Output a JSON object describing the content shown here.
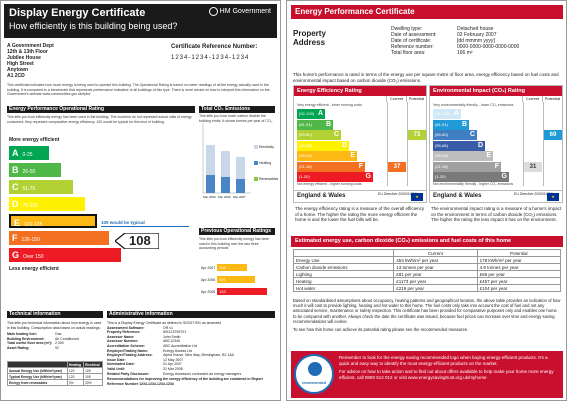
{
  "dec": {
    "title": "Display Energy Certificate",
    "subtitle": "How efficiently is this building being used?",
    "logo": "HM Government",
    "address": [
      "A Government Dept",
      "12th & 13th Floor",
      "Jubilee House",
      "High Street",
      "Anytown",
      "A1 2CD"
    ],
    "ref_label": "Certificate Reference Number:",
    "ref_value": "1234-1234-1234-1234",
    "intro": "This certificate indicates how much energy is being used to operate this building. The Operational Rating is based on meter readings of all the energy actually used in the building. It is compared to a benchmark that represents performance indicative of all buildings of this type. There is more advice on how to interpret this information on the Government's website www.communities.gov.uk/epbd",
    "op_rating_head": "Energy Performance Operational Rating",
    "op_rating_text": "This tells you how efficiently energy has been used in the building. The numbers do not represent actual units of energy consumed; they represent comparative energy efficiency. 100 would be typical for this kind of building.",
    "more_label": "More energy efficient",
    "less_label": "Less energy efficient",
    "bands": [
      {
        "letter": "A",
        "range": "0-25",
        "color": "#00a651"
      },
      {
        "letter": "B",
        "range": "26-50",
        "color": "#50b848"
      },
      {
        "letter": "C",
        "range": "51-75",
        "color": "#b2d234"
      },
      {
        "letter": "D",
        "range": "76-100",
        "color": "#fff200"
      },
      {
        "letter": "E",
        "range": "101-125",
        "color": "#fdb913"
      },
      {
        "letter": "F",
        "range": "126-150",
        "color": "#f37021"
      },
      {
        "letter": "G",
        "range": "Over 150",
        "color": "#ed1c24"
      }
    ],
    "typical_label": "100 would be typical",
    "rating_value": "108",
    "co2_head": "Total CO₂ Emissions",
    "co2_text": "This tells you how much carbon dioxide the building emits. It shows tonnes per year of CO₂.",
    "co2_chart": {
      "legend": [
        "Electricity",
        "Heating",
        "Renewables"
      ],
      "x": [
        "Mar 2005",
        "Mar 2006",
        "Mar 2007"
      ],
      "electricity_color": "#c8d8ea",
      "heating_color": "#4a86c5",
      "renewable_color": "#8cc63f"
    },
    "prev_head": "Previous Operational Ratings",
    "prev_text": "This tells you how efficiently energy has been used in this building over the last three accounting periods",
    "prev_ratings": [
      {
        "period": "Apr 2007",
        "value": "108",
        "color": "#fdb913"
      },
      {
        "period": "Apr 2006",
        "value": "119",
        "color": "#fdb913"
      },
      {
        "period": "Apr 2005",
        "value": "153",
        "color": "#ed1c24"
      }
    ],
    "tech_head": "Technical information",
    "tech_text": "This tells you technical information about how energy is used in this building. Consumption data based on actual readings.",
    "tech_fields": [
      {
        "k": "Main heating fuel:",
        "v": "Gas"
      },
      {
        "k": "Building Environment:",
        "v": "Air Conditioned"
      },
      {
        "k": "Total useful floor area (m²):",
        "v": "2,300"
      },
      {
        "k": "Asset Rating:",
        "v": "92"
      }
    ],
    "tech_table": {
      "headers": [
        "",
        "Heating",
        "Electrical"
      ],
      "rows": [
        [
          "Annual Energy Use (kWh/m²/year)",
          "120",
          "125"
        ],
        [
          "Typical Energy Use (kWh/m²/year)",
          "120",
          "105"
        ],
        [
          "Energy from renewables",
          "0%",
          "20%"
        ]
      ]
    },
    "admin_head": "Administrative information",
    "admin_intro": "This is a Display Energy Certificate as defined in SI2007:991 as amended",
    "admin_fields": [
      {
        "k": "Assessment Software:",
        "v": "OR v1"
      },
      {
        "k": "Property Reference:",
        "v": "891123799701"
      },
      {
        "k": "Assessor Name:",
        "v": "John Smith"
      },
      {
        "k": "Assessor Number:",
        "v": "ABC12345"
      },
      {
        "k": "Accreditation Scheme:",
        "v": "ABC Accreditation Ltd"
      },
      {
        "k": "Employer/Trading Name:",
        "v": "Energy Assess Ltd"
      },
      {
        "k": "Employer/Trading Address:",
        "v": "Alpha House, New Way, Birmingham, B2 1AA"
      },
      {
        "k": "Issue Date:",
        "v": "12 May 2007"
      },
      {
        "k": "Nominated Date:",
        "v": "01 Apr 2007"
      },
      {
        "k": "Valid Until:",
        "v": "31 Mar 2008"
      },
      {
        "k": "Related Party Disclosure:",
        "v": "Energy Assessors contracted as energy managers"
      }
    ],
    "admin_footer": "Recommendations for improving the energy efficiency of the building are contained in Report Reference Number 1234-1234-1234-1234"
  },
  "epc": {
    "title": "Energy Performance Certificate",
    "property_address": "Property Address",
    "fields": [
      {
        "k": "Dwelling type:",
        "v": "Detached house"
      },
      {
        "k": "Date of assessment:",
        "v": "02 February 2007"
      },
      {
        "k": "Date of certificate:",
        "v": "[dd mmmm yyyy]"
      },
      {
        "k": "Reference number:",
        "v": "0000-0000-0000-0000-0000"
      },
      {
        "k": "Total floor area:",
        "v": "166 m²"
      }
    ],
    "intro": "This home's performance is rated in terms of the energy use per square metre of floor area, energy efficiency based on fuel costs and environmental impact based on carbon dioxide (CO₂) emissions.",
    "col_current": "Current",
    "col_potential": "Potential",
    "ee": {
      "title": "Energy Efficiency Rating",
      "top_note": "Very energy efficient - lower running costs",
      "bottom_note": "Not energy efficient - higher running costs",
      "current": "37",
      "potential": "73",
      "current_color": "#f37021",
      "potential_color": "#b2d234",
      "desc": "The energy efficiency rating is a measure of the overall efficiency of a home. The higher the rating the more energy efficient the home is and the lower the fuel bills will be."
    },
    "ei": {
      "title": "Environmental Impact (CO₂) Rating",
      "top_note": "Very environmentally friendly - lower CO₂ emissions",
      "bottom_note": "Not environmentally friendly - higher CO₂ emissions",
      "current": "31",
      "potential": "69",
      "current_color": "#dcdcdc",
      "potential_color": "#1f9ad6",
      "desc": "The environmental impact rating is a measure of a home's impact on the environment in terms of carbon dioxide (CO₂) emissions. The higher the rating the less impact it has on the environment."
    },
    "ee_bands": [
      {
        "letter": "A",
        "range": "(92-100)",
        "color": "#00a651"
      },
      {
        "letter": "B",
        "range": "(81-91)",
        "color": "#50b848"
      },
      {
        "letter": "C",
        "range": "(69-80)",
        "color": "#b2d234"
      },
      {
        "letter": "D",
        "range": "(55-68)",
        "color": "#fff200"
      },
      {
        "letter": "E",
        "range": "(39-54)",
        "color": "#fdb913"
      },
      {
        "letter": "F",
        "range": "(21-38)",
        "color": "#f37021"
      },
      {
        "letter": "G",
        "range": "(1-20)",
        "color": "#ed1c24"
      }
    ],
    "ei_bands": [
      {
        "letter": "A",
        "range": "(92-100)",
        "color": "#cfe8f7"
      },
      {
        "letter": "B",
        "range": "(81-91)",
        "color": "#1f9ad6"
      },
      {
        "letter": "C",
        "range": "(69-80)",
        "color": "#3f7ec0"
      },
      {
        "letter": "D",
        "range": "(55-68)",
        "color": "#3a5ba8"
      },
      {
        "letter": "E",
        "range": "(39-54)",
        "color": "#bdbdbd"
      },
      {
        "letter": "F",
        "range": "(21-38)",
        "color": "#a0a0a0"
      },
      {
        "letter": "G",
        "range": "(1-20)",
        "color": "#7a7a7a"
      }
    ],
    "region": "England & Wales",
    "eu_directive": "EU Directive 2002/91/EC",
    "est_head": "Estimated energy use, carbon dioxide (CO₂) emissions and fuel costs of this home",
    "cost_table": {
      "headers": [
        "",
        "Current",
        "Potential"
      ],
      "rows": [
        [
          "Energy Use",
          "453 kWh/m² per year",
          "178 kWh/m² per year"
        ],
        [
          "Carbon dioxide emissions",
          "13 tonnes per year",
          "4.9 tonnes per year"
        ],
        [
          "Lighting",
          "£81 per year",
          "£65 per year"
        ],
        [
          "Heating",
          "£1173 per year",
          "£457 per year"
        ],
        [
          "Hot water",
          "£219 per year",
          "£104 per year"
        ]
      ]
    },
    "body1": "Based on standardised assumptions about occupancy, heating patterns and geographical location, the above table provides an indication of how much it will cost to provide lighting, heating and hot water to this home. The fuel costs only take into account the cost of fuel and not any associated service, maintenance or safety inspection. This certificate has been provided for comparative purposes only and enables one home to be compared with another. Always check the date the certificate was issued, because fuel prices can increase over time and energy saving recommendations will evolve.",
    "body2": "To see how this home can achieve its potential rating please see the recommended measures.",
    "badge_label": "recommended",
    "footer1": "Remember to look for the energy saving recommended logo when buying energy-efficient products. It's a quick and easy way to identify the most energy-efficient products on the market.",
    "footer2": "For advice on how to take action and to find out about offers available to help make your home more energy efficient, call 0800 512 012 or visit www.energysavingtrust.org.uk/myhome"
  }
}
